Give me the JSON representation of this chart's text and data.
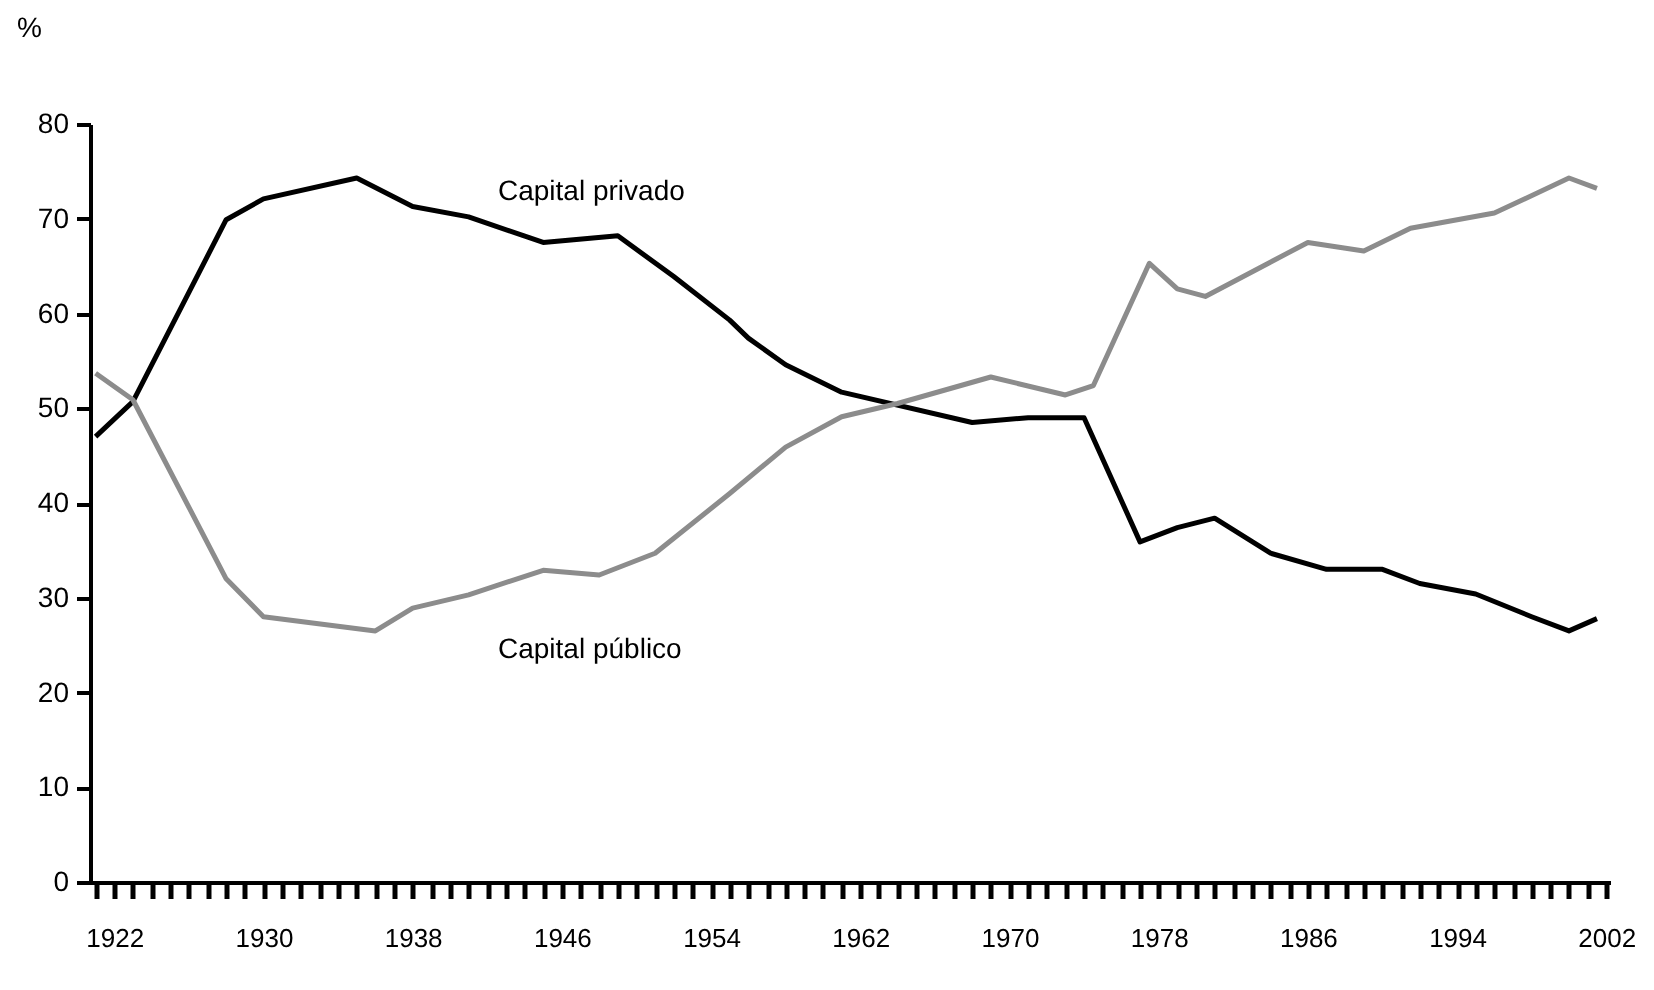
{
  "chart_data": {
    "type": "line",
    "ylabel": "%",
    "xlim": [
      1920.7,
      2002.2
    ],
    "ylim": [
      0,
      80
    ],
    "yticks": [
      0,
      10,
      20,
      30,
      40,
      50,
      60,
      70,
      80
    ],
    "xticks": [
      {
        "value": 1921,
        "label": null
      },
      1922,
      {
        "value": 1923,
        "label": null
      },
      {
        "value": 1924,
        "label": null
      },
      {
        "value": 1925,
        "label": null
      },
      {
        "value": 1926,
        "label": null
      },
      {
        "value": 1927,
        "label": null
      },
      {
        "value": 1928,
        "label": null
      },
      {
        "value": 1929,
        "label": null
      },
      1930,
      {
        "value": 1931,
        "label": null
      },
      {
        "value": 1932,
        "label": null
      },
      {
        "value": 1933,
        "label": null
      },
      {
        "value": 1934,
        "label": null
      },
      {
        "value": 1935,
        "label": null
      },
      {
        "value": 1936,
        "label": null
      },
      {
        "value": 1937,
        "label": null
      },
      1938,
      {
        "value": 1939,
        "label": null
      },
      {
        "value": 1940,
        "label": null
      },
      {
        "value": 1941,
        "label": null
      },
      {
        "value": 1942,
        "label": null
      },
      {
        "value": 1943,
        "label": null
      },
      {
        "value": 1944,
        "label": null
      },
      {
        "value": 1945,
        "label": null
      },
      1946,
      {
        "value": 1947,
        "label": null
      },
      {
        "value": 1948,
        "label": null
      },
      {
        "value": 1949,
        "label": null
      },
      {
        "value": 1950,
        "label": null
      },
      {
        "value": 1951,
        "label": null
      },
      {
        "value": 1952,
        "label": null
      },
      {
        "value": 1953,
        "label": null
      },
      1954,
      {
        "value": 1955,
        "label": null
      },
      {
        "value": 1956,
        "label": null
      },
      {
        "value": 1957,
        "label": null
      },
      {
        "value": 1958,
        "label": null
      },
      {
        "value": 1959,
        "label": null
      },
      {
        "value": 1960,
        "label": null
      },
      {
        "value": 1961,
        "label": null
      },
      1962,
      {
        "value": 1963,
        "label": null
      },
      {
        "value": 1964,
        "label": null
      },
      {
        "value": 1965,
        "label": null
      },
      {
        "value": 1966,
        "label": null
      },
      {
        "value": 1967,
        "label": null
      },
      {
        "value": 1968,
        "label": null
      },
      {
        "value": 1969,
        "label": null
      },
      1970,
      {
        "value": 1971,
        "label": null
      },
      {
        "value": 1972,
        "label": null
      },
      {
        "value": 1973,
        "label": null
      },
      {
        "value": 1974,
        "label": null
      },
      {
        "value": 1975,
        "label": null
      },
      {
        "value": 1976,
        "label": null
      },
      {
        "value": 1977,
        "label": null
      },
      1978,
      {
        "value": 1979,
        "label": null
      },
      {
        "value": 1980,
        "label": null
      },
      {
        "value": 1981,
        "label": null
      },
      {
        "value": 1982,
        "label": null
      },
      {
        "value": 1983,
        "label": null
      },
      {
        "value": 1984,
        "label": null
      },
      {
        "value": 1985,
        "label": null
      },
      1986,
      {
        "value": 1987,
        "label": null
      },
      {
        "value": 1988,
        "label": null
      },
      {
        "value": 1989,
        "label": null
      },
      {
        "value": 1990,
        "label": null
      },
      {
        "value": 1991,
        "label": null
      },
      {
        "value": 1992,
        "label": null
      },
      {
        "value": 1993,
        "label": null
      },
      1994,
      {
        "value": 1995,
        "label": null
      },
      {
        "value": 1996,
        "label": null
      },
      {
        "value": 1997,
        "label": null
      },
      {
        "value": 1998,
        "label": null
      },
      {
        "value": 1999,
        "label": null
      },
      {
        "value": 2000,
        "label": null
      },
      {
        "value": 2001,
        "label": null
      },
      2002
    ],
    "grid": false,
    "legend": false,
    "marker": "none",
    "line_style": "solid",
    "series": [
      {
        "name": "Capital privado",
        "color": "#000000",
        "x": [
          1921,
          1923,
          1928,
          1930,
          1935,
          1938,
          1941,
          1945,
          1949,
          1952,
          1955,
          1956,
          1958,
          1961,
          1968,
          1971,
          1974,
          1977,
          1979,
          1981,
          1984,
          1987,
          1990,
          1992,
          1995,
          1998,
          2000,
          2001.5
        ],
        "values": [
          47.0,
          50.7,
          69.9,
          72.1,
          74.3,
          71.3,
          70.2,
          67.5,
          68.2,
          63.9,
          59.3,
          57.4,
          54.6,
          51.7,
          48.5,
          49.0,
          49.0,
          35.9,
          37.4,
          38.4,
          34.7,
          33.0,
          33.0,
          31.5,
          30.4,
          28.0,
          26.5,
          27.8
        ]
      },
      {
        "name": "Capital público",
        "color": "#8c8c8c",
        "x": [
          1921,
          1923,
          1928,
          1930,
          1936,
          1938,
          1941,
          1945,
          1948,
          1951,
          1955,
          1958,
          1961,
          1964,
          1969,
          1973,
          1974.5,
          1977.5,
          1979,
          1980.5,
          1986,
          1989,
          1991.5,
          1996,
          2000,
          2001.5
        ],
        "values": [
          53.7,
          50.9,
          32.0,
          28.0,
          26.5,
          28.9,
          30.3,
          32.9,
          32.4,
          34.7,
          41.0,
          45.9,
          49.1,
          50.5,
          53.3,
          51.4,
          52.4,
          65.3,
          62.6,
          61.8,
          67.5,
          66.6,
          69.0,
          70.6,
          74.3,
          73.2
        ]
      }
    ]
  }
}
